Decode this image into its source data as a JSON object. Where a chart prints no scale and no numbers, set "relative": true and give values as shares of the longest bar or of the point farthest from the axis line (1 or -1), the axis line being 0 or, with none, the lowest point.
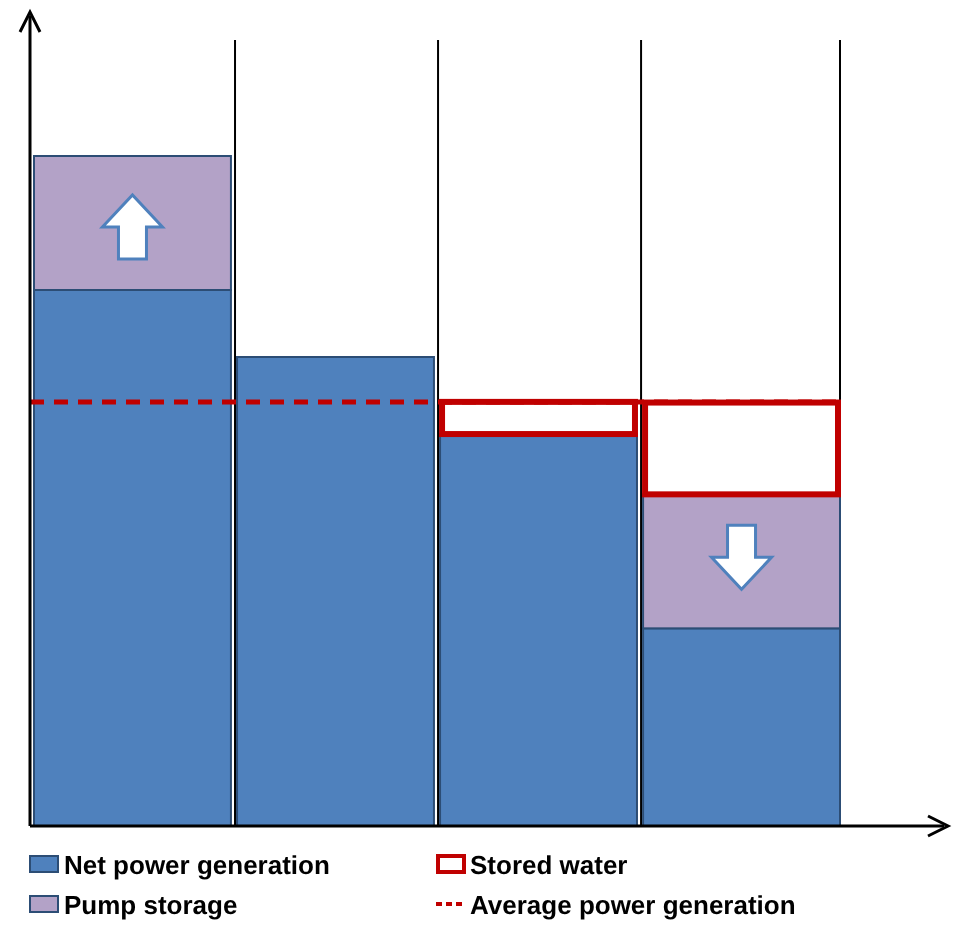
{
  "chart_data": {
    "type": "bar",
    "relative": true,
    "stacked": true,
    "categories": [
      null,
      null,
      null,
      null
    ],
    "series": [
      {
        "name": "Net power generation",
        "color": "#4f81bd",
        "values": [
          0.8,
          0.7,
          0.585,
          0.295
        ]
      },
      {
        "name": "Pump storage",
        "color": "#b3a2c7",
        "values": [
          0.2,
          null,
          null,
          0.2
        ]
      },
      {
        "name": "Stored water",
        "color": "#c00000",
        "values": [
          null,
          null,
          0.048,
          0.137
        ]
      }
    ],
    "ref_lines": [
      {
        "axis": "y",
        "value": 0.633,
        "label": "Average power generation",
        "color": "#c00000",
        "line_style": "dashed"
      }
    ],
    "grid": "x",
    "legend": "bottom"
  }
}
